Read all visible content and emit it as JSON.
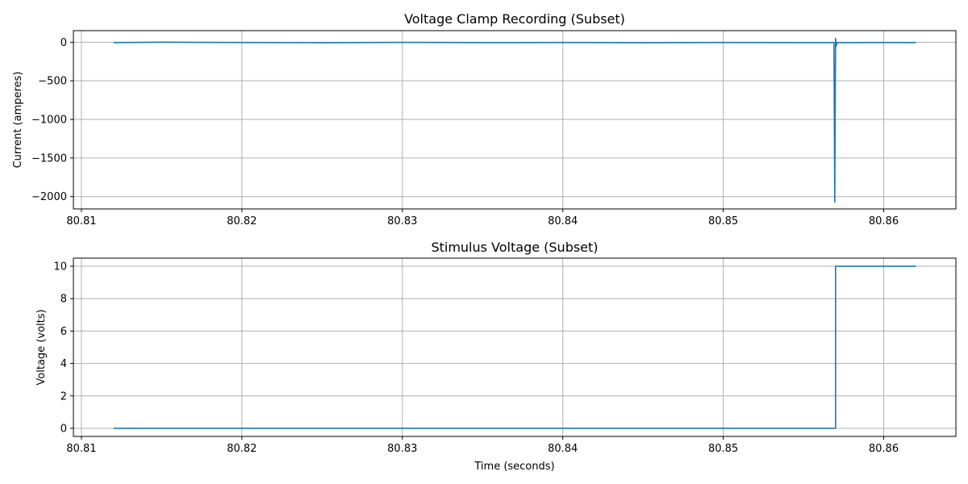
{
  "colors": {
    "series": "#1f77b4",
    "grid": "#b0b0b0",
    "frame": "#000000"
  },
  "chart_data": [
    {
      "type": "line",
      "title": "Voltage Clamp Recording (Subset)",
      "xlabel": "",
      "ylabel": "Current (amperes)",
      "xlim": [
        80.8095,
        80.8645
      ],
      "ylim": [
        -2160,
        150
      ],
      "xticks": [
        80.81,
        80.82,
        80.83,
        80.84,
        80.85,
        80.86
      ],
      "xtick_labels": [
        "80.81",
        "80.82",
        "80.83",
        "80.84",
        "80.85",
        "80.86"
      ],
      "yticks": [
        0,
        -500,
        -1000,
        -1500,
        -2000
      ],
      "ytick_labels": [
        "0",
        "−500",
        "−1000",
        "−1500",
        "−2000"
      ],
      "grid": true,
      "series": [
        {
          "color": "#1f77b4",
          "x": [
            80.812,
            80.815,
            80.82,
            80.825,
            80.83,
            80.835,
            80.84,
            80.845,
            80.85,
            80.855,
            80.8569,
            80.85695,
            80.857,
            80.85705,
            80.8571,
            80.858,
            80.86,
            80.862
          ],
          "y": [
            -5,
            0,
            -4,
            -6,
            -2,
            -5,
            -4,
            -6,
            -3,
            -5,
            -5,
            -2070,
            50,
            -50,
            -5,
            -5,
            -4,
            -5
          ]
        }
      ]
    },
    {
      "type": "line",
      "title": "Stimulus Voltage (Subset)",
      "xlabel": "Time (seconds)",
      "ylabel": "Voltage (volts)",
      "xlim": [
        80.8095,
        80.8645
      ],
      "ylim": [
        -0.5,
        10.5
      ],
      "xticks": [
        80.81,
        80.82,
        80.83,
        80.84,
        80.85,
        80.86
      ],
      "xtick_labels": [
        "80.81",
        "80.82",
        "80.83",
        "80.84",
        "80.85",
        "80.86"
      ],
      "yticks": [
        0,
        2,
        4,
        6,
        8,
        10
      ],
      "ytick_labels": [
        "0",
        "2",
        "4",
        "6",
        "8",
        "10"
      ],
      "grid": true,
      "series": [
        {
          "color": "#1f77b4",
          "x": [
            80.812,
            80.857,
            80.857,
            80.862
          ],
          "y": [
            0,
            0,
            10,
            10
          ]
        }
      ]
    }
  ]
}
